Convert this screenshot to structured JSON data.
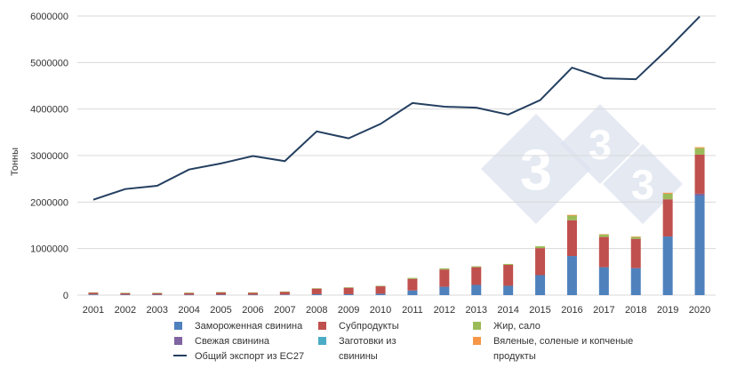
{
  "chart_data": {
    "type": "bar",
    "ylabel": "Тонны",
    "ylim": [
      0,
      6000000
    ],
    "yticks": [
      "0",
      "1000000",
      "2000000",
      "3000000",
      "4000000",
      "5000000",
      "6000000"
    ],
    "grid": true,
    "legend_position": "bottom",
    "categories": [
      "2001",
      "2002",
      "2003",
      "2004",
      "2005",
      "2006",
      "2007",
      "2008",
      "2009",
      "2010",
      "2011",
      "2012",
      "2013",
      "2014",
      "2015",
      "2016",
      "2017",
      "2018",
      "2019",
      "2020"
    ],
    "series": [
      {
        "name": "Замороженная свинина",
        "kind": "bar",
        "color": "#4f81bd",
        "values": [
          15000,
          10000,
          10000,
          8000,
          10000,
          8000,
          12000,
          20000,
          20000,
          30000,
          100000,
          180000,
          220000,
          200000,
          430000,
          840000,
          600000,
          580000,
          1260000,
          2140000
        ]
      },
      {
        "name": "Свежая свинина",
        "kind": "bar",
        "color": "#8064a2",
        "values": [
          0,
          0,
          0,
          0,
          0,
          0,
          0,
          0,
          0,
          0,
          0,
          0,
          0,
          0,
          0,
          0,
          0,
          0,
          0,
          40000
        ]
      },
      {
        "name": "Субпродукты",
        "kind": "bar",
        "color": "#c0504d",
        "values": [
          40000,
          35000,
          35000,
          40000,
          50000,
          45000,
          60000,
          120000,
          140000,
          160000,
          250000,
          370000,
          380000,
          450000,
          580000,
          770000,
          650000,
          630000,
          800000,
          840000
        ]
      },
      {
        "name": "Заготовки из свинины",
        "kind": "bar",
        "color": "#4bacc6",
        "values": [
          0,
          0,
          0,
          0,
          0,
          0,
          0,
          0,
          0,
          0,
          0,
          0,
          0,
          0,
          0,
          0,
          0,
          0,
          0,
          0
        ]
      },
      {
        "name": "Жир, сало",
        "kind": "bar",
        "color": "#9bbb59",
        "values": [
          5000,
          5000,
          5000,
          5000,
          5000,
          5000,
          5000,
          8000,
          8000,
          10000,
          20000,
          25000,
          20000,
          20000,
          40000,
          100000,
          50000,
          40000,
          120000,
          140000
        ]
      },
      {
        "name": "Вяленые, соленые и копченые продукты",
        "kind": "bar",
        "color": "#f79646",
        "values": [
          0,
          0,
          0,
          0,
          0,
          0,
          0,
          0,
          0,
          0,
          0,
          0,
          0,
          0,
          0,
          15000,
          10000,
          10000,
          20000,
          20000
        ]
      },
      {
        "name": "Общий экспорт из ЕС27",
        "kind": "line",
        "color": "#243f60",
        "values": [
          2050000,
          2280000,
          2350000,
          2700000,
          2830000,
          2990000,
          2880000,
          3520000,
          3370000,
          3680000,
          4130000,
          4050000,
          4030000,
          3880000,
          4190000,
          4890000,
          4660000,
          4640000,
          5290000,
          5990000
        ]
      }
    ]
  },
  "watermark": {
    "glyph": "3",
    "color": "#dde4ef"
  }
}
